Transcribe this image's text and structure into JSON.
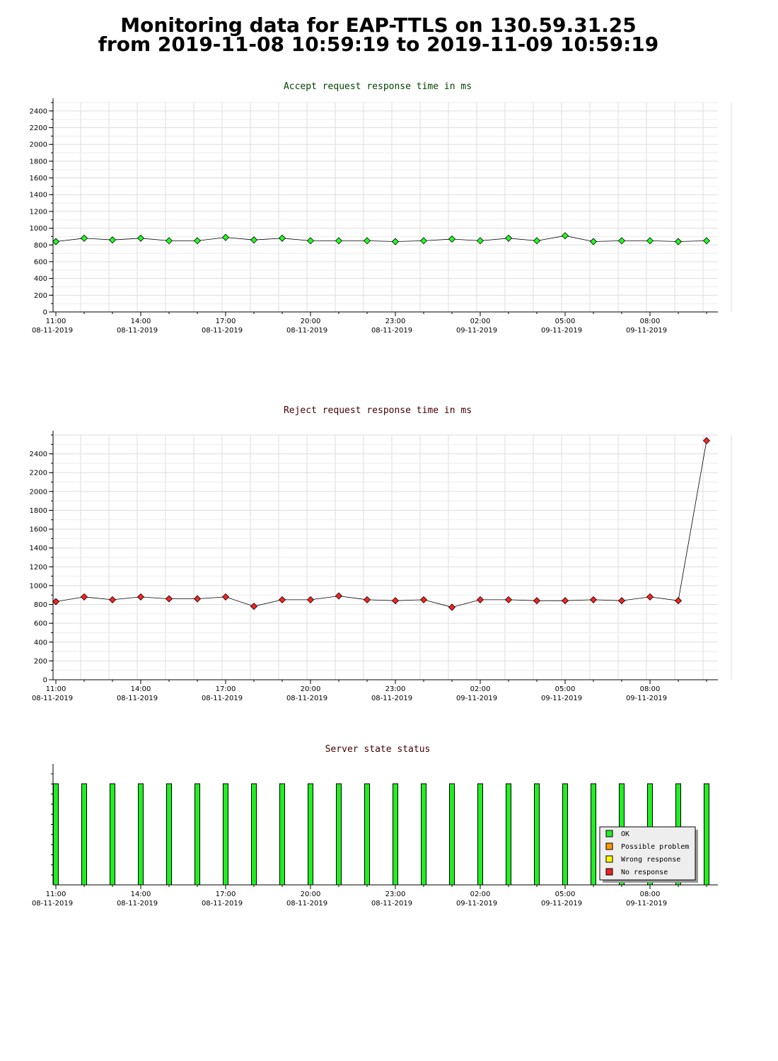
{
  "header": {
    "title_line1": "Monitoring data for EAP-TTLS on 130.59.31.25",
    "title_line2": "from 2019-11-08 10:59:19 to 2019-11-09 10:59:19"
  },
  "colors": {
    "accept_title": "#004400",
    "reject_title": "#440000",
    "status_title": "#440000",
    "accept_marker": "#22ff22",
    "reject_marker": "#ff2222",
    "ok": "#22ee22",
    "possible_problem": "#ff9900",
    "wrong_response": "#ffff00",
    "no_response": "#ee2222",
    "grid": "#dddddd"
  },
  "x_ticks": [
    {
      "time": "11:00",
      "date": "08-11-2019"
    },
    {
      "time": "14:00",
      "date": "08-11-2019"
    },
    {
      "time": "17:00",
      "date": "08-11-2019"
    },
    {
      "time": "20:00",
      "date": "08-11-2019"
    },
    {
      "time": "23:00",
      "date": "08-11-2019"
    },
    {
      "time": "02:00",
      "date": "09-11-2019"
    },
    {
      "time": "05:00",
      "date": "09-11-2019"
    },
    {
      "time": "08:00",
      "date": "09-11-2019"
    }
  ],
  "chart_data": [
    {
      "type": "line",
      "title": "Accept request response time in ms",
      "x": [
        "11:00",
        "12:00",
        "13:00",
        "14:00",
        "15:00",
        "16:00",
        "17:00",
        "18:00",
        "19:00",
        "20:00",
        "21:00",
        "22:00",
        "23:00",
        "00:00",
        "01:00",
        "02:00",
        "03:00",
        "04:00",
        "05:00",
        "06:00",
        "07:00",
        "08:00",
        "09:00",
        "10:00"
      ],
      "series": [
        {
          "values": [
            840,
            880,
            860,
            880,
            850,
            850,
            890,
            860,
            880,
            850,
            850,
            850,
            840,
            850,
            870,
            850,
            880,
            850,
            910,
            840,
            850,
            850,
            840,
            850
          ]
        }
      ],
      "ylim": [
        0,
        2500
      ],
      "yticks": [
        0,
        200,
        400,
        600,
        800,
        1000,
        1200,
        1400,
        1600,
        1800,
        2000,
        2200,
        2400
      ],
      "grid": true
    },
    {
      "type": "line",
      "title": "Reject request response time in ms",
      "x": [
        "11:00",
        "12:00",
        "13:00",
        "14:00",
        "15:00",
        "16:00",
        "17:00",
        "18:00",
        "19:00",
        "20:00",
        "21:00",
        "22:00",
        "23:00",
        "00:00",
        "01:00",
        "02:00",
        "03:00",
        "04:00",
        "05:00",
        "06:00",
        "07:00",
        "08:00",
        "09:00",
        "10:00"
      ],
      "series": [
        {
          "values": [
            830,
            880,
            850,
            880,
            860,
            860,
            880,
            780,
            850,
            850,
            890,
            850,
            840,
            850,
            770,
            850,
            850,
            840,
            840,
            850,
            840,
            880,
            840,
            2540
          ]
        }
      ],
      "ylim": [
        0,
        2600
      ],
      "yticks": [
        0,
        200,
        400,
        600,
        800,
        1000,
        1200,
        1400,
        1600,
        1800,
        2000,
        2200,
        2400
      ],
      "grid": true
    },
    {
      "type": "bar",
      "title": "Server state status",
      "x": [
        "11:00",
        "12:00",
        "13:00",
        "14:00",
        "15:00",
        "16:00",
        "17:00",
        "18:00",
        "19:00",
        "20:00",
        "21:00",
        "22:00",
        "23:00",
        "00:00",
        "01:00",
        "02:00",
        "03:00",
        "04:00",
        "05:00",
        "06:00",
        "07:00",
        "08:00",
        "09:00",
        "10:00"
      ],
      "states": [
        "OK",
        "OK",
        "OK",
        "OK",
        "OK",
        "OK",
        "OK",
        "OK",
        "OK",
        "OK",
        "OK",
        "OK",
        "OK",
        "OK",
        "OK",
        "OK",
        "OK",
        "OK",
        "OK",
        "OK",
        "OK",
        "OK",
        "OK",
        "OK"
      ],
      "legend_position": "bottom-right",
      "legend": [
        {
          "label": "OK",
          "color_key": "ok"
        },
        {
          "label": "Possible problem",
          "color_key": "possible_problem"
        },
        {
          "label": "Wrong response",
          "color_key": "wrong_response"
        },
        {
          "label": "No response",
          "color_key": "no_response"
        }
      ]
    }
  ]
}
